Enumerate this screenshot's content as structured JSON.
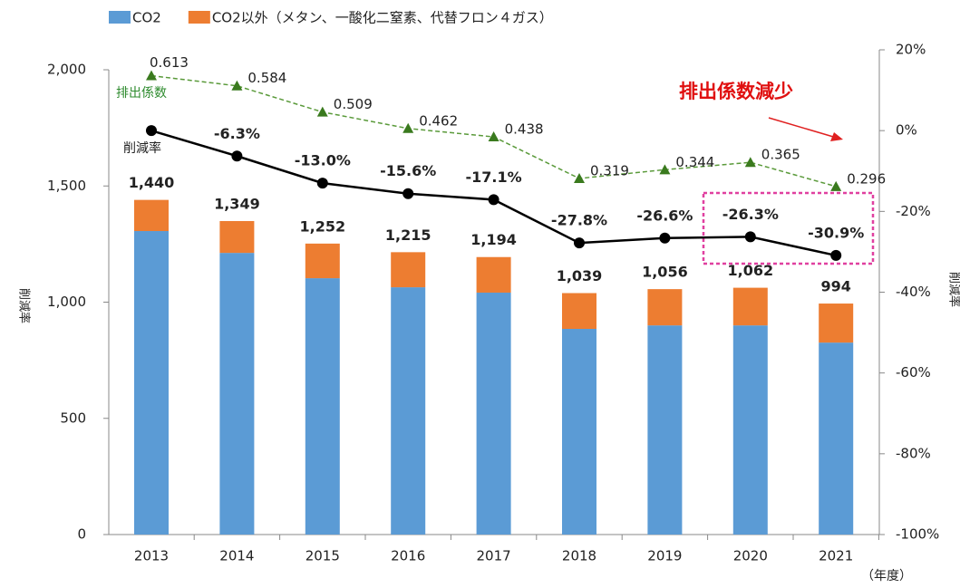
{
  "chart_data": {
    "type": "bar",
    "categories": [
      "2013",
      "2014",
      "2015",
      "2016",
      "2017",
      "2018",
      "2019",
      "2020",
      "2021"
    ],
    "series": [
      {
        "name": "CO2",
        "color": "#5b9bd5",
        "values": [
          1306,
          1212,
          1103,
          1064,
          1041,
          885,
          900,
          900,
          826
        ]
      },
      {
        "name": "CO2以外（メタン、一酸化二窒素、代替フロン４ガス）",
        "color": "#ed7d31",
        "values": [
          134,
          137,
          149,
          151,
          153,
          154,
          156,
          162,
          168
        ]
      },
      {
        "name": "削減率",
        "type": "line",
        "axis": "y2",
        "color": "#000000",
        "values": [
          0,
          -6.3,
          -13.0,
          -15.6,
          -17.1,
          -27.8,
          -26.6,
          -26.3,
          -30.9
        ],
        "value_labels": [
          null,
          "-6.3%",
          "-13.0%",
          "-15.6%",
          "-17.1%",
          "-27.8%",
          "-26.6%",
          "-26.3%",
          "-30.9%"
        ]
      },
      {
        "name": "排出係数",
        "type": "line",
        "axis": "y3",
        "color": "#3a7a1e",
        "values": [
          0.613,
          0.584,
          0.509,
          0.462,
          0.438,
          0.319,
          0.344,
          0.365,
          0.296
        ]
      }
    ],
    "totals": [
      1440,
      1349,
      1252,
      1215,
      1194,
      1039,
      1056,
      1062,
      994
    ],
    "total_labels": [
      "1,440",
      "1,349",
      "1,252",
      "1,215",
      "1,194",
      "1,039",
      "1,056",
      "1,062",
      "994"
    ],
    "stacked": true,
    "ylim": [
      0,
      2000
    ],
    "yticks": [
      0,
      500,
      {
        "value": 1000,
        "label": "1,000"
      },
      {
        "value": 1500,
        "label": "1,500"
      },
      {
        "value": 2000,
        "label": "2,000"
      }
    ],
    "y2lim": [
      -100,
      20
    ],
    "y2ticks": [
      {
        "value": -100,
        "label": "-100%"
      },
      {
        "value": -80,
        "label": "-80%"
      },
      {
        "value": -60,
        "label": "-60%"
      },
      {
        "value": -40,
        "label": "-40%"
      },
      {
        "value": -20,
        "label": "-20%"
      },
      {
        "value": 0,
        "label": "0%"
      },
      {
        "value": 20,
        "label": "20%"
      }
    ],
    "y3lim": [
      -0.7,
      0.63
    ],
    "y_label": "削減率",
    "y2_label": "削減率",
    "x_unit": "（年度）",
    "annotation": "排出係数減少",
    "legend": "top"
  }
}
